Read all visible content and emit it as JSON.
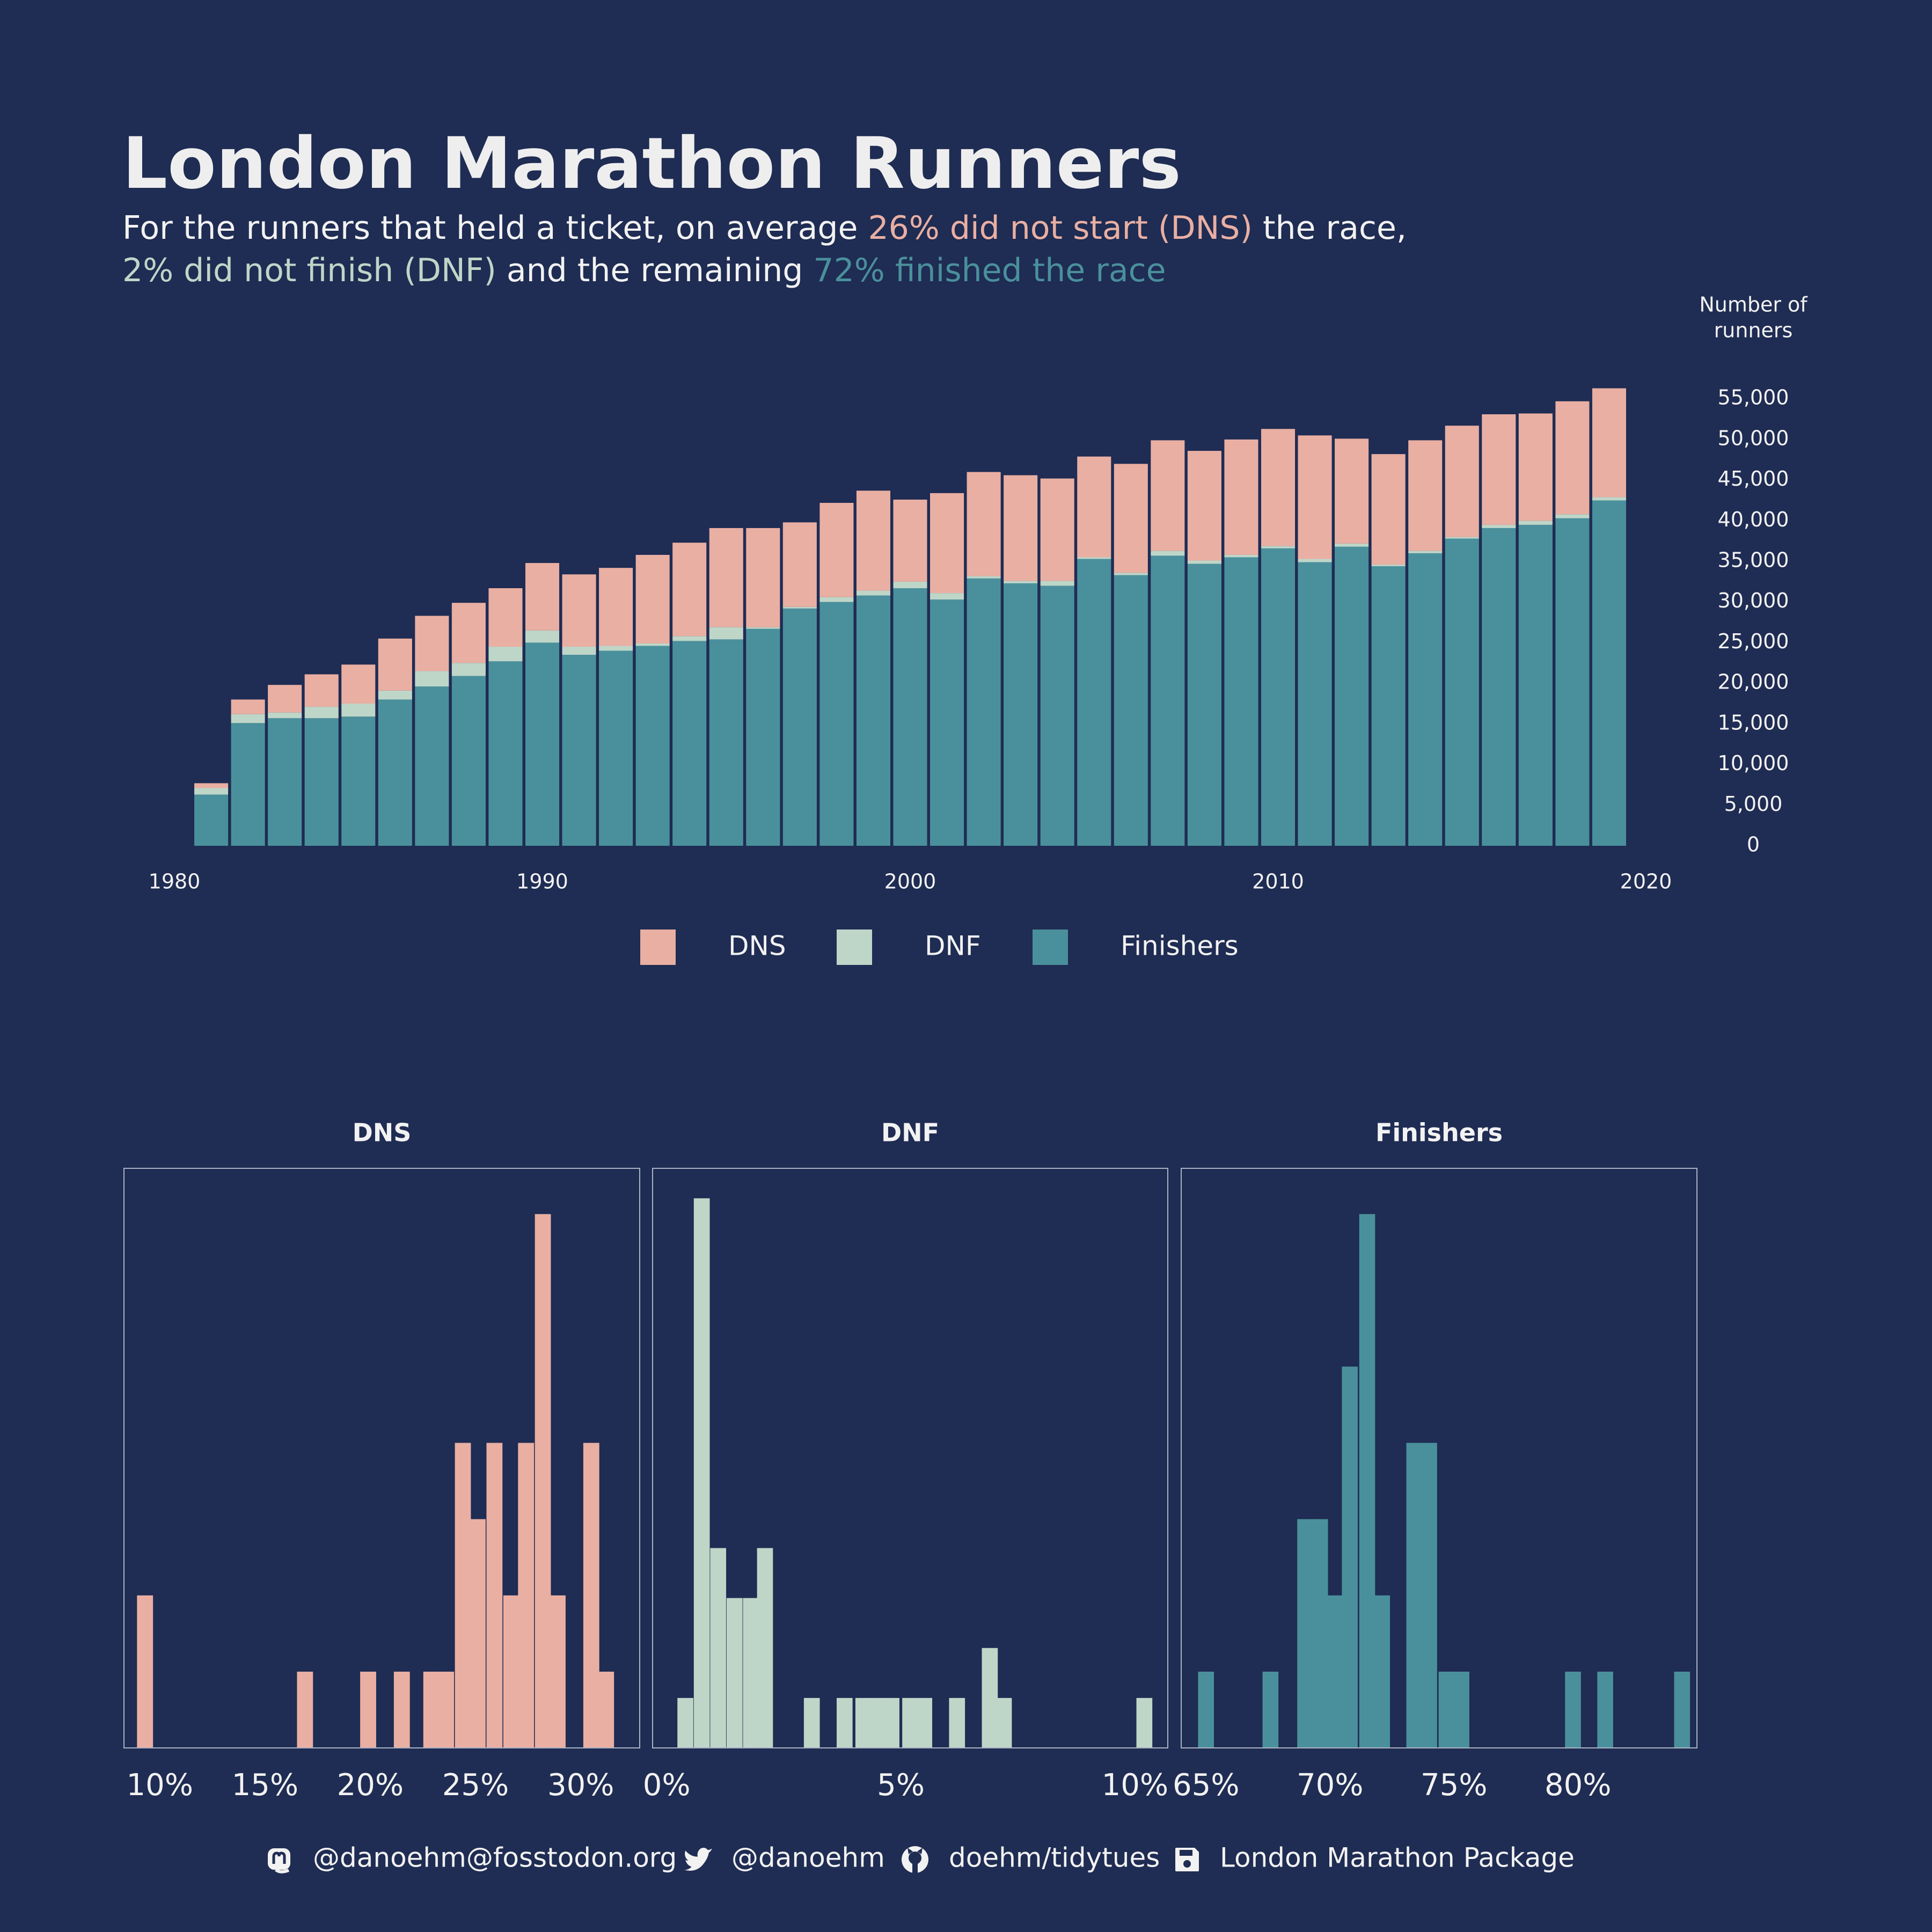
{
  "colors": {
    "background": "#1f2c53",
    "dns": "#e9afa3",
    "dnf": "#bed6c8",
    "finishers": "#4a909c",
    "text": "#f2f2f2",
    "title": "#eeeeee",
    "panel_border": "#aab2c4"
  },
  "header": {
    "title": "London Marathon Runners",
    "subtitle_line1": [
      {
        "text": "For the runners that held a ticket, on average ",
        "role": "text"
      },
      {
        "text": "26% did not start (DNS)",
        "role": "dns"
      },
      {
        "text": " the race,",
        "role": "text"
      }
    ],
    "subtitle_line2": [
      {
        "text": "2% did not finish (DNF)",
        "role": "dnf"
      },
      {
        "text": " and the remaining ",
        "role": "text"
      },
      {
        "text": "72% finished the race",
        "role": "finishers"
      }
    ]
  },
  "chart_data": [
    {
      "type": "bar",
      "stacked": true,
      "title": "London Marathon Runners",
      "ylabel": "Number of runners",
      "y_label_lines": [
        "Number of",
        "runners"
      ],
      "xlim": [
        1980,
        2020
      ],
      "ylim": [
        0,
        56400
      ],
      "x_ticks": [
        "1980",
        "1990",
        "2000",
        "2010",
        "2020"
      ],
      "y_ticks": [
        "0",
        "5,000",
        "10,000",
        "15,000",
        "20,000",
        "25,000",
        "30,000",
        "35,000",
        "40,000",
        "45,000",
        "50,000",
        "55,000"
      ],
      "legend": {
        "position": "bottom",
        "entries": [
          "DNS",
          "DNF",
          "Finishers"
        ]
      },
      "x": [
        1981,
        1982,
        1983,
        1984,
        1985,
        1986,
        1987,
        1988,
        1989,
        1990,
        1991,
        1992,
        1993,
        1994,
        1995,
        1996,
        1997,
        1998,
        1999,
        2000,
        2001,
        2002,
        2003,
        2004,
        2005,
        2006,
        2007,
        2008,
        2009,
        2010,
        2011,
        2012,
        2013,
        2014,
        2015,
        2016,
        2017,
        2018,
        2019
      ],
      "series": [
        {
          "name": "Finishers",
          "color_key": "finishers",
          "values": [
            6300,
            15100,
            15700,
            15700,
            15900,
            18000,
            19600,
            20900,
            22700,
            25000,
            23500,
            24000,
            24600,
            25200,
            25400,
            26700,
            29200,
            30000,
            30800,
            31700,
            30300,
            32900,
            32300,
            32000,
            35300,
            33300,
            35700,
            34700,
            35500,
            36600,
            34900,
            36800,
            34400,
            36000,
            37800,
            39100,
            39500,
            40300,
            42500
          ]
        },
        {
          "name": "DNF",
          "color_key": "dnf",
          "values": [
            800,
            1100,
            700,
            1400,
            1600,
            1100,
            1900,
            1600,
            1800,
            1500,
            1000,
            600,
            300,
            600,
            1500,
            200,
            200,
            600,
            600,
            800,
            800,
            300,
            300,
            600,
            200,
            300,
            600,
            400,
            300,
            300,
            400,
            400,
            200,
            300,
            200,
            400,
            500,
            500,
            400
          ]
        },
        {
          "name": "DNS",
          "color_key": "dns",
          "values": [
            600,
            1800,
            3400,
            4000,
            4800,
            6400,
            6800,
            7400,
            7200,
            8300,
            8900,
            9600,
            10900,
            11500,
            12200,
            12200,
            10400,
            11600,
            12300,
            10100,
            12300,
            12800,
            13000,
            12600,
            12400,
            13400,
            13600,
            13500,
            14200,
            14400,
            15200,
            12900,
            13600,
            13600,
            13700,
            13600,
            13200,
            13900,
            13400
          ]
        }
      ]
    },
    {
      "type": "bar",
      "subtype": "histogram",
      "title": "DNS",
      "color_key": "dns",
      "xlim": [
        8.3,
        32.8
      ],
      "bin_width": 0.76,
      "count_max": 7.6,
      "x_tick_values": [
        10,
        15,
        20,
        25,
        30
      ],
      "x_ticks": [
        "10%",
        "15%",
        "20%",
        "25%",
        "30%"
      ],
      "bins": [
        {
          "x": 9.3,
          "count": 2
        },
        {
          "x": 16.9,
          "count": 1
        },
        {
          "x": 19.9,
          "count": 1
        },
        {
          "x": 21.5,
          "count": 1
        },
        {
          "x": 22.9,
          "count": 1
        },
        {
          "x": 23.6,
          "count": 1
        },
        {
          "x": 24.4,
          "count": 4
        },
        {
          "x": 25.1,
          "count": 3
        },
        {
          "x": 25.9,
          "count": 4
        },
        {
          "x": 26.7,
          "count": 2
        },
        {
          "x": 27.4,
          "count": 4
        },
        {
          "x": 28.2,
          "count": 7
        },
        {
          "x": 28.9,
          "count": 2
        },
        {
          "x": 30.5,
          "count": 4
        },
        {
          "x": 31.2,
          "count": 1
        }
      ]
    },
    {
      "type": "bar",
      "subtype": "histogram",
      "title": "DNF",
      "color_key": "dnf",
      "xlim": [
        -0.3,
        10.7
      ],
      "bin_width": 0.34,
      "count_max": 11.6,
      "x_tick_values": [
        0,
        5,
        10
      ],
      "x_ticks": [
        "0%",
        "5%",
        "10%"
      ],
      "bins": [
        {
          "x": 0.4,
          "count": 1
        },
        {
          "x": 0.75,
          "count": 11
        },
        {
          "x": 1.1,
          "count": 4
        },
        {
          "x": 1.45,
          "count": 3
        },
        {
          "x": 1.8,
          "count": 3
        },
        {
          "x": 2.1,
          "count": 4
        },
        {
          "x": 3.1,
          "count": 1
        },
        {
          "x": 3.8,
          "count": 1
        },
        {
          "x": 4.2,
          "count": 1
        },
        {
          "x": 4.5,
          "count": 1
        },
        {
          "x": 4.8,
          "count": 1
        },
        {
          "x": 5.2,
          "count": 1
        },
        {
          "x": 5.5,
          "count": 1
        },
        {
          "x": 6.2,
          "count": 1
        },
        {
          "x": 6.9,
          "count": 2
        },
        {
          "x": 7.2,
          "count": 1
        },
        {
          "x": 10.2,
          "count": 1
        }
      ]
    },
    {
      "type": "bar",
      "subtype": "histogram",
      "title": "Finishers",
      "color_key": "finishers",
      "xlim": [
        64.0,
        84.8
      ],
      "bin_width": 0.64,
      "count_max": 7.6,
      "x_tick_values": [
        65,
        70,
        75,
        80
      ],
      "x_ticks": [
        "65%",
        "70%",
        "75%",
        "80%"
      ],
      "bins": [
        {
          "x": 65.0,
          "count": 1
        },
        {
          "x": 67.6,
          "count": 1
        },
        {
          "x": 69.0,
          "count": 3
        },
        {
          "x": 69.6,
          "count": 3
        },
        {
          "x": 70.2,
          "count": 2
        },
        {
          "x": 70.8,
          "count": 5
        },
        {
          "x": 71.5,
          "count": 7
        },
        {
          "x": 72.1,
          "count": 2
        },
        {
          "x": 73.4,
          "count": 4
        },
        {
          "x": 74.0,
          "count": 4
        },
        {
          "x": 74.7,
          "count": 1
        },
        {
          "x": 75.3,
          "count": 1
        },
        {
          "x": 79.8,
          "count": 1
        },
        {
          "x": 81.1,
          "count": 1
        },
        {
          "x": 84.2,
          "count": 1
        }
      ]
    }
  ],
  "footer": {
    "items": [
      {
        "icon": "mastodon-icon",
        "text": "@danoehm@fosstodon.org"
      },
      {
        "icon": "twitter-icon",
        "text": "@danoehm"
      },
      {
        "icon": "github-icon",
        "text": "doehm/tidytues"
      },
      {
        "icon": "floppy-disk-icon",
        "text": "London Marathon Package"
      }
    ]
  }
}
